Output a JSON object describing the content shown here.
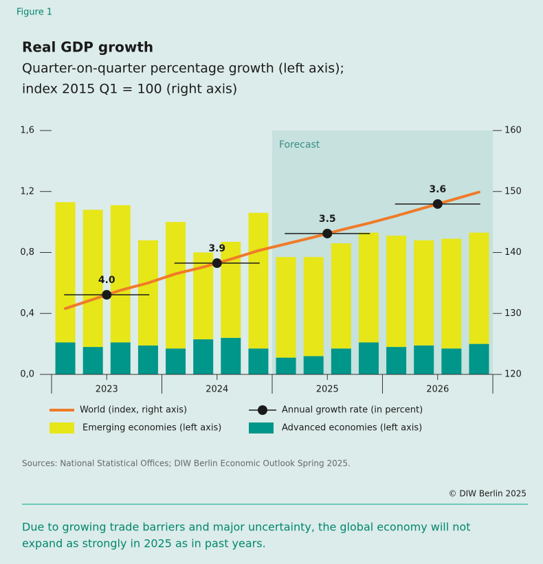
{
  "figure_label": "Figure 1",
  "chart_data": {
    "type": "bar",
    "title": "Real GDP growth",
    "subtitle": [
      "Quarter-on-quarter percentage growth (left axis);",
      "index 2015 Q1 = 100 (right axis)"
    ],
    "categories": [
      null,
      null,
      null,
      null,
      null,
      null,
      null,
      null,
      null,
      null,
      null,
      null,
      null,
      null,
      null,
      null
    ],
    "years": [
      "2023",
      "2024",
      "2025",
      "2026"
    ],
    "forecast_label": "Forecast",
    "series": [
      {
        "name": "Advanced economies (left axis)",
        "color": "#00968a",
        "values": [
          0.21,
          0.18,
          0.21,
          0.19,
          0.17,
          0.23,
          0.24,
          0.17,
          0.11,
          0.12,
          0.17,
          0.21,
          0.18,
          0.19,
          0.17,
          0.2
        ]
      },
      {
        "name": "Emerging economies (left axis)",
        "color": "#e6e619",
        "values": [
          0.92,
          0.9,
          0.9,
          0.69,
          0.83,
          0.57,
          0.63,
          0.89,
          0.66,
          0.65,
          0.69,
          0.72,
          0.73,
          0.69,
          0.72,
          0.73
        ]
      },
      {
        "name": "World (index, right axis)",
        "color": "#f07a28",
        "axis": "y2",
        "values": [
          130.8,
          132.3,
          133.8,
          135.0,
          136.5,
          137.6,
          138.9,
          140.3,
          141.4,
          142.5,
          143.7,
          144.8,
          146.0,
          147.3,
          148.6,
          149.9
        ]
      }
    ],
    "annual": {
      "name": "Annual growth rate (in percent)",
      "color": "#1a1a1a",
      "values": [
        4.0,
        3.9,
        3.5,
        3.6
      ],
      "value_labels": [
        "4.0",
        "3.9",
        "3.5",
        "3.6"
      ]
    },
    "ylim": [
      0,
      1.6
    ],
    "yticks": [
      {
        "value": 0,
        "label": "0,0"
      },
      {
        "value": 0.4,
        "label": "0,4"
      },
      {
        "value": 0.8,
        "label": "0,8"
      },
      {
        "value": 1.2,
        "label": "1,2"
      },
      {
        "value": 1.6,
        "label": "1,6"
      }
    ],
    "y2lim": [
      120,
      160
    ],
    "y2ticks": [
      120,
      130,
      140,
      150,
      160
    ]
  },
  "source": "Sources: National Statistical Offices; DIW Berlin Economic Outlook Spring 2025.",
  "copyright": "© DIW Berlin 2025",
  "caption": [
    "Due to growing trade barriers and major uncertainty, the global economy will not",
    "expand as strongly in 2025 as in past years."
  ]
}
